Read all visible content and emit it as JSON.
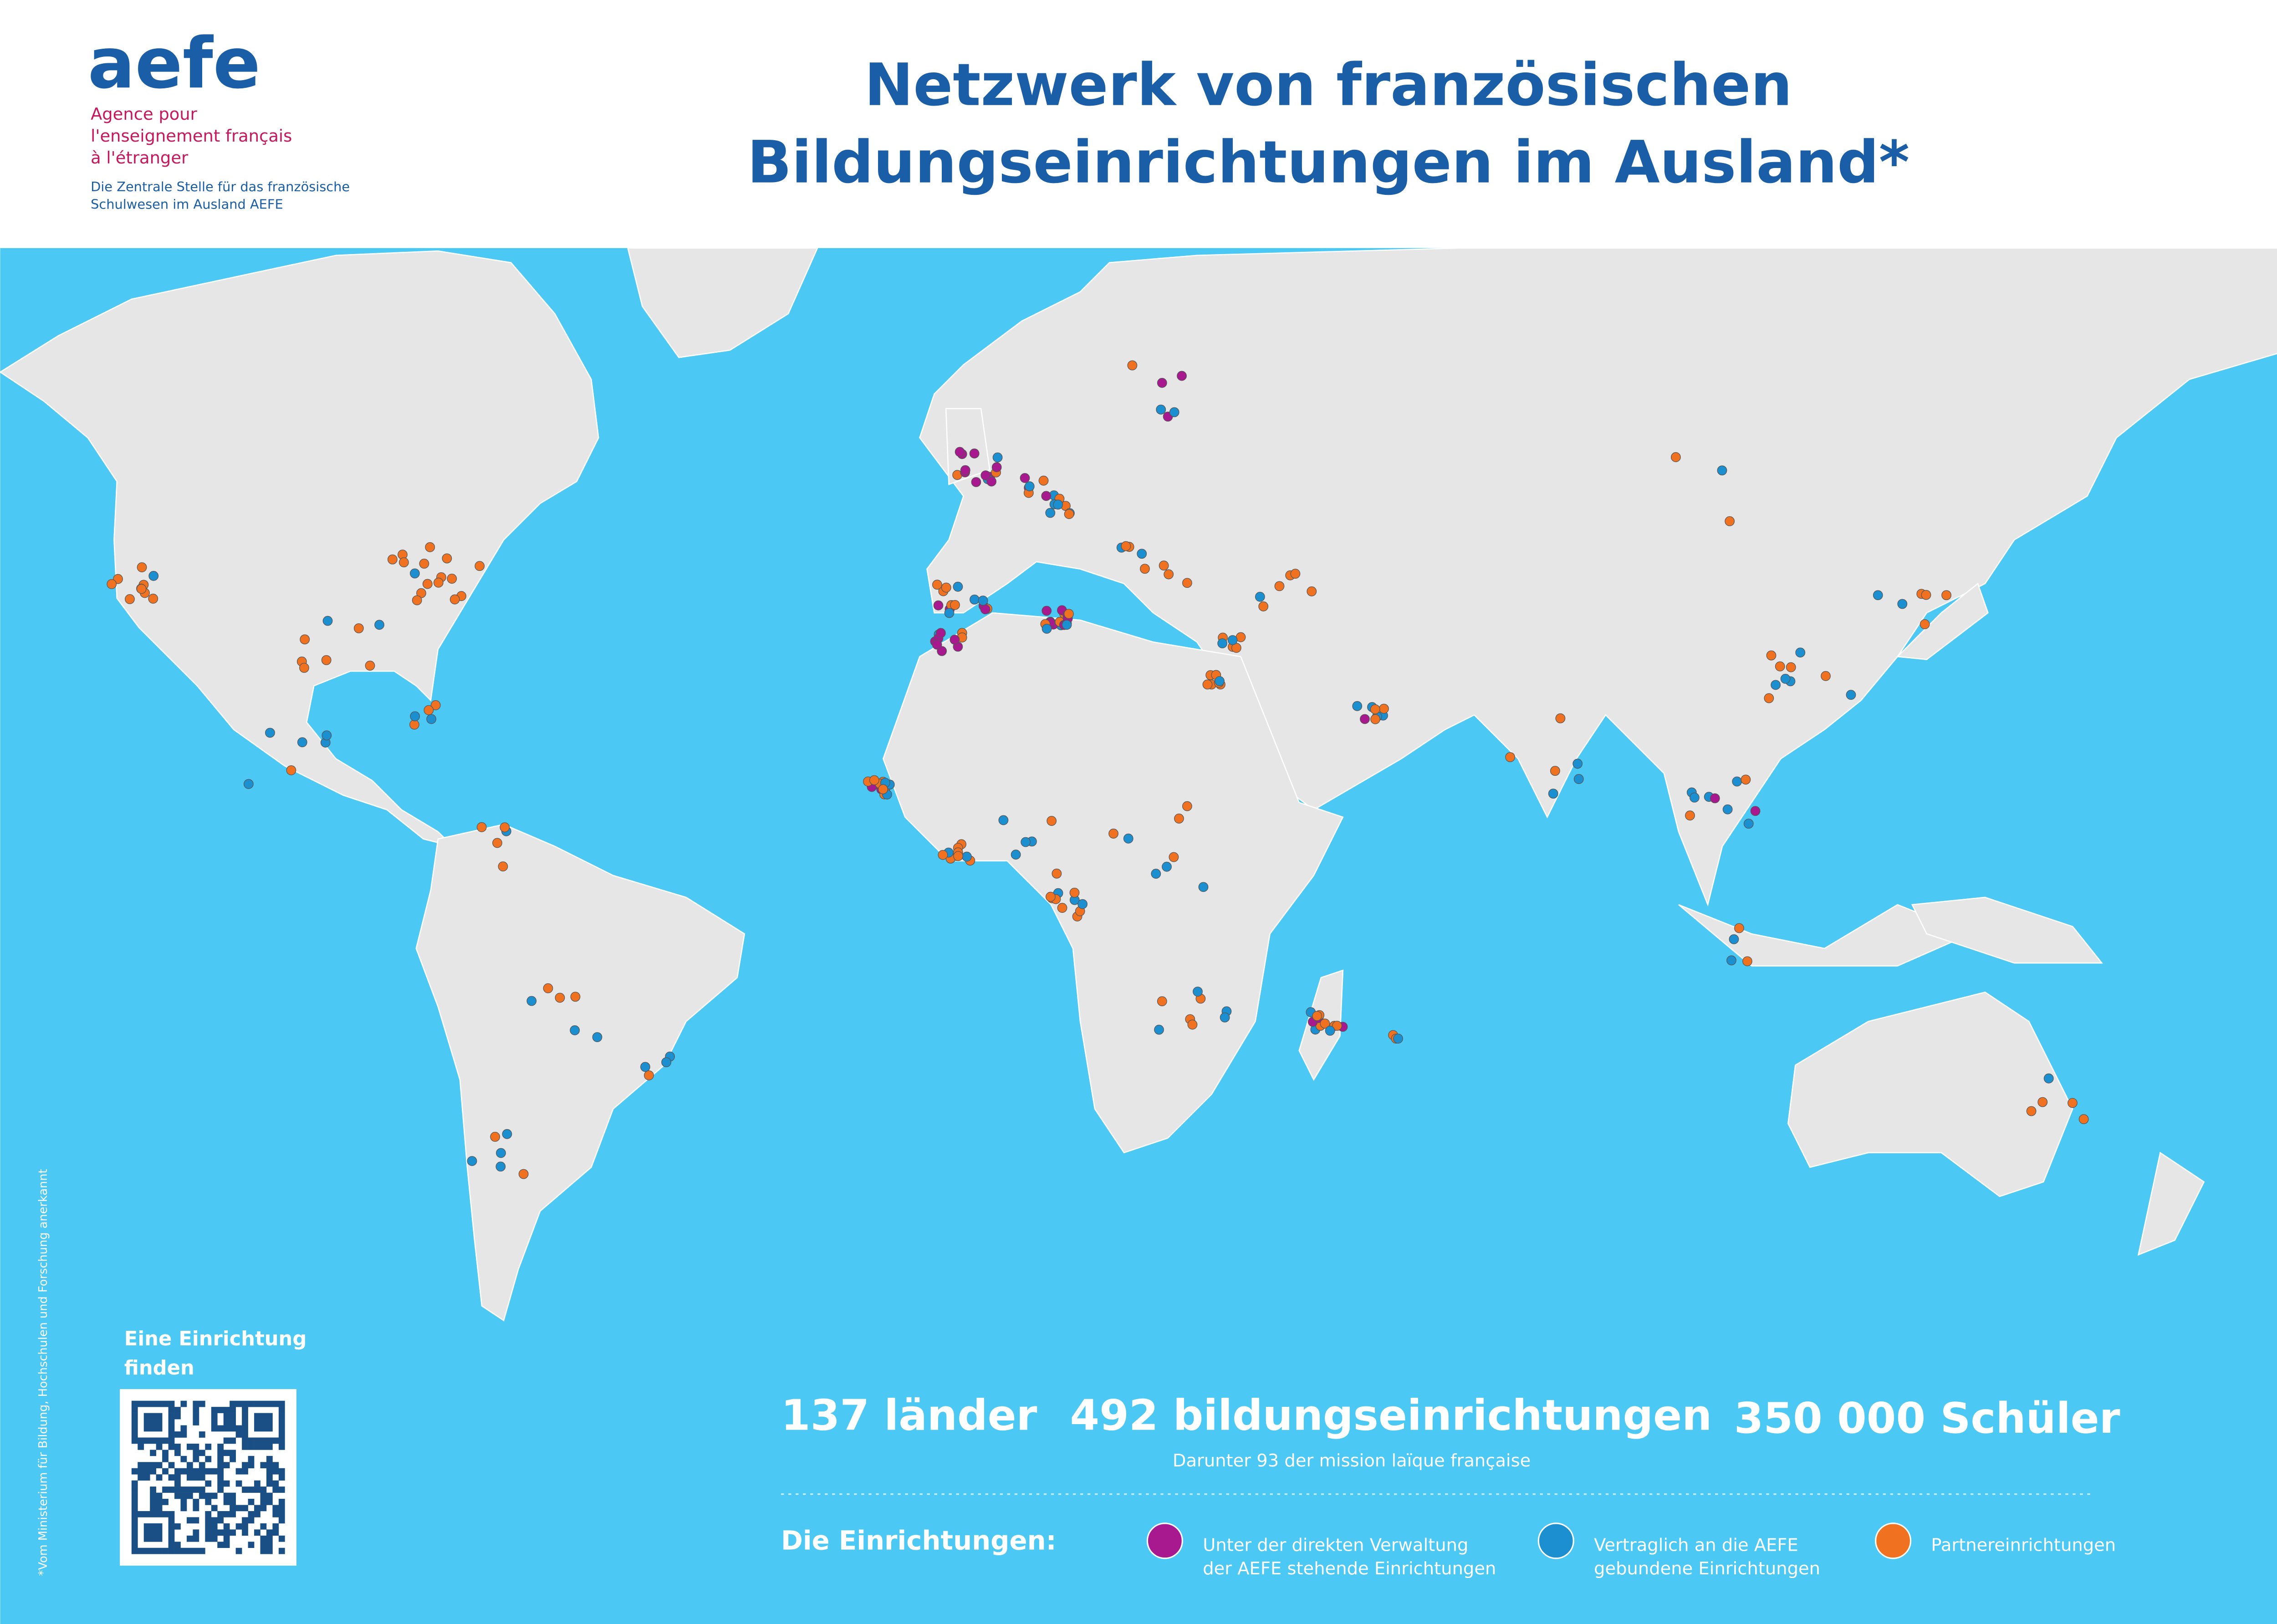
{
  "header": {
    "logo": "aefe",
    "agency_lines": [
      "Agence pour",
      "l'enseignement français",
      "à l'étranger"
    ],
    "subtitle_lines": [
      "Die Zentrale Stelle für das französische",
      "Schulwesen im Ausland AEFE"
    ],
    "title_lines": [
      "Netzwerk von französischen",
      "Bildungseinrichtungen im Ausland*"
    ]
  },
  "footnote": "*Vom Ministerium für Bildung, Hochschulen und Forschung anerkannt",
  "finder": {
    "lines": [
      "Eine Einrichtung",
      "finden"
    ]
  },
  "stats": {
    "countries": "137 länder",
    "schools": "492 bildungseinrichtungen",
    "students": "350 000 Schüler",
    "note": "Darunter 93 der mission laïque française"
  },
  "legend": {
    "title": "Die Einrichtungen:",
    "items": [
      {
        "lines": [
          "Unter der direkten Verwaltung",
          "der AEFE stehende Einrichtungen"
        ],
        "color": "#a8198f"
      },
      {
        "lines": [
          "Vertraglich an die AEFE",
          "gebundene Einrichtungen"
        ],
        "color": "#1b8fcf"
      },
      {
        "lines": [
          "Partnereinrichtungen"
        ],
        "color": "#f07221"
      }
    ]
  }
}
